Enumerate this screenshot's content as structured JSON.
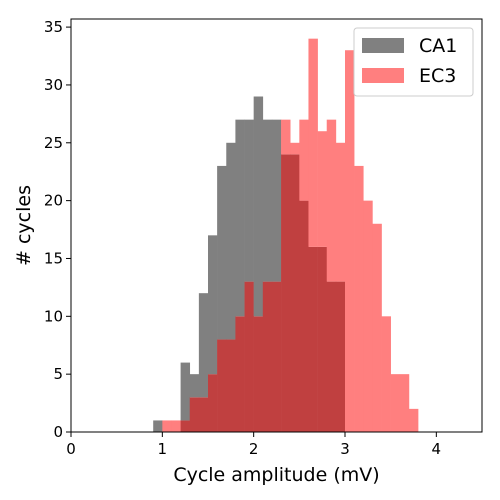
{
  "chart_data": {
    "type": "histogram",
    "xlabel": "Cycle amplitude (mV)",
    "ylabel": "# cycles",
    "xlim": [
      0,
      4.5
    ],
    "ylim": [
      0,
      35.7
    ],
    "xticks": [
      "0",
      "1",
      "2",
      "3",
      "4"
    ],
    "yticks": [
      "0",
      "5",
      "10",
      "15",
      "20",
      "25",
      "30",
      "35"
    ],
    "legend_position": "top-right",
    "bin_width": 0.1,
    "series": [
      {
        "name": "CA1",
        "color": "#808080",
        "bins": [
          [
            0.9,
            1
          ],
          [
            1.2,
            6
          ],
          [
            1.3,
            5
          ],
          [
            1.4,
            12
          ],
          [
            1.5,
            17
          ],
          [
            1.6,
            23
          ],
          [
            1.7,
            25
          ],
          [
            1.8,
            27
          ],
          [
            1.9,
            27
          ],
          [
            2.0,
            29
          ],
          [
            2.1,
            27
          ],
          [
            2.2,
            27
          ],
          [
            2.3,
            24
          ],
          [
            2.4,
            24
          ],
          [
            2.5,
            20
          ],
          [
            2.6,
            16
          ],
          [
            2.7,
            16
          ],
          [
            2.8,
            13
          ],
          [
            2.9,
            13
          ]
        ]
      },
      {
        "name": "EC3",
        "color": "#ff7f7f",
        "opacity": 1,
        "bins": [
          [
            1.0,
            1
          ],
          [
            1.1,
            1
          ],
          [
            1.2,
            1
          ],
          [
            1.3,
            3
          ],
          [
            1.4,
            3
          ],
          [
            1.5,
            5
          ],
          [
            1.6,
            8
          ],
          [
            1.7,
            8
          ],
          [
            1.8,
            10
          ],
          [
            1.9,
            13
          ],
          [
            2.0,
            10
          ],
          [
            2.1,
            13
          ],
          [
            2.2,
            13
          ],
          [
            2.3,
            27
          ],
          [
            2.4,
            25
          ],
          [
            2.5,
            27
          ],
          [
            2.6,
            34
          ],
          [
            2.7,
            26
          ],
          [
            2.8,
            27
          ],
          [
            2.9,
            25
          ],
          [
            3.0,
            33
          ],
          [
            3.1,
            23
          ],
          [
            3.2,
            20
          ],
          [
            3.3,
            18
          ],
          [
            3.4,
            10
          ],
          [
            3.5,
            5
          ],
          [
            3.6,
            5
          ],
          [
            3.7,
            2
          ]
        ]
      }
    ]
  }
}
